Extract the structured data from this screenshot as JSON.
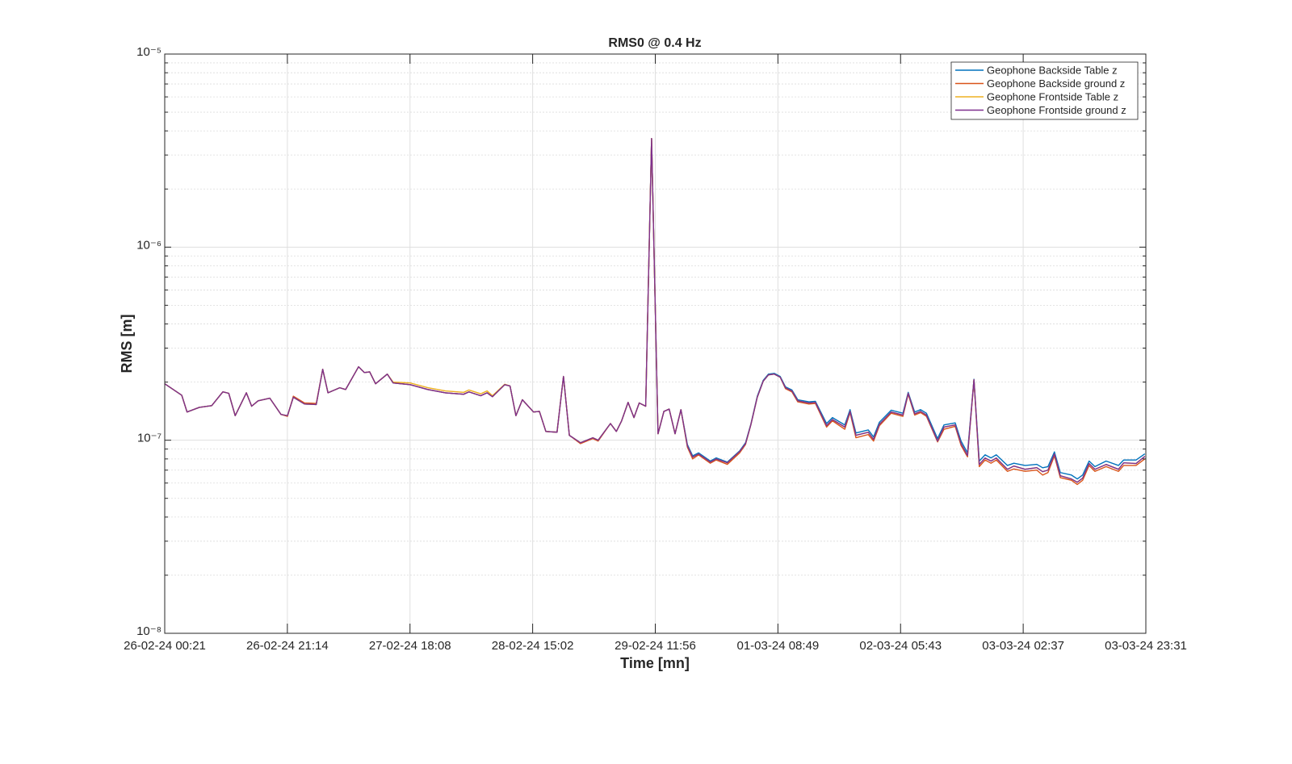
{
  "chart_data": {
    "type": "line",
    "title": "RMS0 @ 0.4 Hz",
    "x_label": "Time [mn]",
    "y_label": "RMS [m]",
    "x": [
      0,
      2.9,
      3.8,
      5.9,
      8.0,
      9.9,
      10.9,
      12.0,
      13.9,
      14.8,
      15.9,
      17.9,
      19.8,
      20.9,
      21.9,
      23.8,
      25.8,
      26.9,
      27.8,
      29.8,
      30.8,
      33.0,
      34.0,
      34.9,
      35.9,
      37.9,
      38.9,
      41.8,
      44.8,
      47.8,
      50.9,
      51.8,
      53.8,
      54.9,
      55.8,
      57.9,
      58.8,
      59.8,
      60.9,
      62.8,
      63.8,
      64.9,
      66.8,
      67.9,
      68.9,
      70.8,
      72.9,
      73.8,
      75.9,
      76.9,
      77.8,
      78.9,
      79.9,
      80.8,
      81.9,
      82.9,
      84.0,
      85.0,
      85.9,
      86.9,
      87.9,
      89.0,
      89.9,
      90.9,
      92.9,
      93.9,
      95.8,
      97.9,
      98.9,
      99.8,
      100.9,
      101.9,
      102.8,
      103.8,
      104.8,
      105.7,
      106.8,
      107.8,
      109.7,
      110.8,
      112.7,
      113.7,
      115.8,
      116.7,
      117.7,
      119.8,
      120.7,
      121.7,
      123.7,
      125.7,
      126.6,
      127.7,
      128.7,
      129.7,
      131.6,
      132.7,
      134.6,
      135.6,
      136.7,
      137.8,
      138.7,
      139.7,
      140.7,
      141.6,
      143.5,
      144.6,
      146.5,
      148.5,
      149.5,
      150.4,
      151.5,
      152.5,
      154.4,
      155.4,
      156.3,
      157.4,
      158.4,
      160.3,
      162.4,
      163.3,
      165.4,
      166.9
    ],
    "series": [
      {
        "name": "Geophone Backside Table z",
        "color": "#0072BD",
        "values": [
          1.96e-07,
          1.71e-07,
          1.4e-07,
          1.48e-07,
          1.51e-07,
          1.78e-07,
          1.75e-07,
          1.34e-07,
          1.76e-07,
          1.5e-07,
          1.6e-07,
          1.65e-07,
          1.36e-07,
          1.34e-07,
          1.67e-07,
          1.54e-07,
          1.53e-07,
          2.33e-07,
          1.76e-07,
          1.87e-07,
          1.83e-07,
          2.4e-07,
          2.24e-07,
          2.26e-07,
          1.96e-07,
          2.2e-07,
          1.98e-07,
          1.94e-07,
          1.83e-07,
          1.76e-07,
          1.73e-07,
          1.78e-07,
          1.7e-07,
          1.76e-07,
          1.68e-07,
          1.94e-07,
          1.91e-07,
          1.34e-07,
          1.62e-07,
          1.4e-07,
          1.41e-07,
          1.11e-07,
          1.1e-07,
          2.14e-07,
          1.06e-07,
          9.7e-08,
          1.03e-07,
          1e-07,
          1.22e-07,
          1.11e-07,
          1.26e-07,
          1.57e-07,
          1.31e-07,
          1.56e-07,
          1.5e-07,
          3.65e-06,
          1.08e-07,
          1.41e-07,
          1.45e-07,
          1.08e-07,
          1.44e-07,
          9.5e-08,
          8.3e-08,
          8.6e-08,
          7.8e-08,
          8.1e-08,
          7.7e-08,
          8.8e-08,
          9.7e-08,
          1.21e-07,
          1.69e-07,
          2.04e-07,
          2.2e-07,
          2.22e-07,
          2.14e-07,
          1.89e-07,
          1.82e-07,
          1.62e-07,
          1.58e-07,
          1.59e-07,
          1.22e-07,
          1.31e-07,
          1.2e-07,
          1.44e-07,
          1.09e-07,
          1.13e-07,
          1.04e-07,
          1.24e-07,
          1.43e-07,
          1.38e-07,
          1.77e-07,
          1.4e-07,
          1.44e-07,
          1.38e-07,
          1.02e-07,
          1.2e-07,
          1.23e-07,
          9.9e-08,
          8.6e-08,
          2.07e-07,
          7.8e-08,
          8.4e-08,
          8.1e-08,
          8.4e-08,
          7.4e-08,
          7.6e-08,
          7.4e-08,
          7.5e-08,
          7.2e-08,
          7.3e-08,
          8.7e-08,
          6.8e-08,
          6.6e-08,
          6.3e-08,
          6.6e-08,
          7.8e-08,
          7.3e-08,
          7.8e-08,
          7.4e-08,
          7.9e-08,
          7.9e-08,
          8.5e-08
        ]
      },
      {
        "name": "Geophone Backside ground z",
        "color": "#D95319",
        "values": [
          1.96e-07,
          1.71e-07,
          1.4e-07,
          1.48e-07,
          1.51e-07,
          1.78e-07,
          1.75e-07,
          1.34e-07,
          1.76e-07,
          1.5e-07,
          1.6e-07,
          1.65e-07,
          1.36e-07,
          1.33e-07,
          1.69e-07,
          1.56e-07,
          1.55e-07,
          2.33e-07,
          1.76e-07,
          1.87e-07,
          1.83e-07,
          2.4e-07,
          2.24e-07,
          2.26e-07,
          1.96e-07,
          2.2e-07,
          1.98e-07,
          1.94e-07,
          1.83e-07,
          1.76e-07,
          1.73e-07,
          1.78e-07,
          1.7e-07,
          1.76e-07,
          1.68e-07,
          1.94e-07,
          1.91e-07,
          1.34e-07,
          1.62e-07,
          1.4e-07,
          1.41e-07,
          1.11e-07,
          1.1e-07,
          2.14e-07,
          1.06e-07,
          9.6e-08,
          1.02e-07,
          9.9e-08,
          1.22e-07,
          1.11e-07,
          1.26e-07,
          1.57e-07,
          1.31e-07,
          1.56e-07,
          1.5e-07,
          3.65e-06,
          1.08e-07,
          1.41e-07,
          1.45e-07,
          1.08e-07,
          1.44e-07,
          9.2e-08,
          8e-08,
          8.4e-08,
          7.6e-08,
          7.9e-08,
          7.5e-08,
          8.6e-08,
          9.5e-08,
          1.2e-07,
          1.67e-07,
          2.02e-07,
          2.18e-07,
          2.2e-07,
          2.12e-07,
          1.85e-07,
          1.78e-07,
          1.58e-07,
          1.54e-07,
          1.55e-07,
          1.17e-07,
          1.26e-07,
          1.14e-07,
          1.39e-07,
          1.03e-07,
          1.07e-07,
          9.9e-08,
          1.19e-07,
          1.38e-07,
          1.33e-07,
          1.73e-07,
          1.35e-07,
          1.39e-07,
          1.33e-07,
          9.8e-08,
          1.14e-07,
          1.18e-07,
          9.4e-08,
          8.2e-08,
          2.05e-07,
          7.3e-08,
          7.9e-08,
          7.6e-08,
          7.9e-08,
          6.9e-08,
          7.1e-08,
          6.9e-08,
          7e-08,
          6.6e-08,
          6.8e-08,
          8.3e-08,
          6.4e-08,
          6.2e-08,
          5.9e-08,
          6.2e-08,
          7.4e-08,
          6.9e-08,
          7.3e-08,
          6.9e-08,
          7.4e-08,
          7.4e-08,
          8e-08
        ]
      },
      {
        "name": "Geophone Frontside Table z",
        "color": "#EDB120",
        "values": [
          1.96e-07,
          1.71e-07,
          1.4e-07,
          1.48e-07,
          1.51e-07,
          1.78e-07,
          1.75e-07,
          1.34e-07,
          1.76e-07,
          1.5e-07,
          1.6e-07,
          1.65e-07,
          1.36e-07,
          1.34e-07,
          1.67e-07,
          1.54e-07,
          1.53e-07,
          2.33e-07,
          1.76e-07,
          1.87e-07,
          1.83e-07,
          2.4e-07,
          2.24e-07,
          2.26e-07,
          1.96e-07,
          2.2e-07,
          2e-07,
          1.98e-07,
          1.87e-07,
          1.8e-07,
          1.77e-07,
          1.82e-07,
          1.74e-07,
          1.8e-07,
          1.7e-07,
          1.95e-07,
          1.91e-07,
          1.34e-07,
          1.62e-07,
          1.4e-07,
          1.41e-07,
          1.11e-07,
          1.1e-07,
          2.14e-07,
          1.06e-07,
          9.7e-08,
          1.03e-07,
          1e-07,
          1.22e-07,
          1.11e-07,
          1.26e-07,
          1.57e-07,
          1.31e-07,
          1.56e-07,
          1.5e-07,
          3.65e-06,
          1.08e-07,
          1.41e-07,
          1.45e-07,
          1.08e-07,
          1.44e-07,
          9.35e-08,
          8.17e-08,
          8.49e-08,
          7.71e-08,
          8e-08,
          7.64e-08,
          8.74e-08,
          9.6e-08,
          1.2e-07,
          1.67e-07,
          2.02e-07,
          2.18e-07,
          2.2e-07,
          2.12e-07,
          1.87e-07,
          1.8e-07,
          1.6e-07,
          1.56e-07,
          1.57e-07,
          1.19e-07,
          1.28e-07,
          1.17e-07,
          1.41e-07,
          1.06e-07,
          1.1e-07,
          1.01e-07,
          1.21e-07,
          1.4e-07,
          1.35e-07,
          1.75e-07,
          1.37e-07,
          1.41e-07,
          1.35e-07,
          9.9e-08,
          1.17e-07,
          1.2e-07,
          9.6e-08,
          8.33e-08,
          2.06e-07,
          7.49e-08,
          8.09e-08,
          7.8e-08,
          8.09e-08,
          7.07e-08,
          7.35e-08,
          7.07e-08,
          7.21e-08,
          6.87e-08,
          7e-08,
          8.49e-08,
          6.55e-08,
          6.3e-08,
          6.06e-08,
          6.36e-08,
          7.57e-08,
          7.07e-08,
          7.49e-08,
          7.07e-08,
          7.64e-08,
          7.57e-08,
          8.25e-08
        ]
      },
      {
        "name": "Geophone Frontside ground z",
        "color": "#7E2F8E",
        "values": [
          1.96e-07,
          1.71e-07,
          1.4e-07,
          1.48e-07,
          1.51e-07,
          1.78e-07,
          1.75e-07,
          1.34e-07,
          1.76e-07,
          1.5e-07,
          1.6e-07,
          1.65e-07,
          1.36e-07,
          1.34e-07,
          1.67e-07,
          1.54e-07,
          1.53e-07,
          2.33e-07,
          1.76e-07,
          1.87e-07,
          1.83e-07,
          2.4e-07,
          2.24e-07,
          2.26e-07,
          1.96e-07,
          2.2e-07,
          1.98e-07,
          1.94e-07,
          1.83e-07,
          1.76e-07,
          1.73e-07,
          1.78e-07,
          1.7e-07,
          1.76e-07,
          1.68e-07,
          1.94e-07,
          1.91e-07,
          1.34e-07,
          1.62e-07,
          1.4e-07,
          1.41e-07,
          1.11e-07,
          1.1e-07,
          2.14e-07,
          1.06e-07,
          9.7e-08,
          1.03e-07,
          1e-07,
          1.22e-07,
          1.11e-07,
          1.26e-07,
          1.57e-07,
          1.31e-07,
          1.56e-07,
          1.5e-07,
          3.65e-06,
          1.08e-07,
          1.41e-07,
          1.45e-07,
          1.08e-07,
          1.44e-07,
          9.35e-08,
          8.17e-08,
          8.49e-08,
          7.71e-08,
          8e-08,
          7.64e-08,
          8.74e-08,
          9.6e-08,
          1.2e-07,
          1.67e-07,
          2.02e-07,
          2.18e-07,
          2.2e-07,
          2.12e-07,
          1.87e-07,
          1.8e-07,
          1.6e-07,
          1.56e-07,
          1.57e-07,
          1.19e-07,
          1.28e-07,
          1.17e-07,
          1.41e-07,
          1.06e-07,
          1.1e-07,
          1.01e-07,
          1.21e-07,
          1.4e-07,
          1.35e-07,
          1.75e-07,
          1.37e-07,
          1.41e-07,
          1.35e-07,
          9.9e-08,
          1.17e-07,
          1.2e-07,
          9.6e-08,
          8.33e-08,
          2.06e-07,
          7.49e-08,
          8.09e-08,
          7.8e-08,
          8.09e-08,
          7.07e-08,
          7.35e-08,
          7.07e-08,
          7.21e-08,
          6.87e-08,
          7e-08,
          8.49e-08,
          6.55e-08,
          6.3e-08,
          6.06e-08,
          6.36e-08,
          7.57e-08,
          7.07e-08,
          7.49e-08,
          7.07e-08,
          7.64e-08,
          7.57e-08,
          8.25e-08
        ]
      }
    ],
    "xlim": [
      0,
      167.067
    ],
    "xticks": [
      {
        "value": 0,
        "label": "26-02-24 00:21"
      },
      {
        "value": 20.883,
        "label": "26-02-24 21:14"
      },
      {
        "value": 41.767,
        "label": "27-02-24 18:08"
      },
      {
        "value": 62.65,
        "label": "28-02-24 15:02"
      },
      {
        "value": 83.533,
        "label": "29-02-24 11:56"
      },
      {
        "value": 104.417,
        "label": "01-03-24 08:49"
      },
      {
        "value": 125.3,
        "label": "02-03-24 05:43"
      },
      {
        "value": 146.183,
        "label": "03-03-24 02:37"
      },
      {
        "value": 167.067,
        "label": "03-03-24 23:31"
      }
    ],
    "ylim": [
      1e-08,
      1e-05
    ],
    "yticks": [
      {
        "value": 1e-08,
        "label": "10⁻⁸"
      },
      {
        "value": 1e-07,
        "label": "10⁻⁷"
      },
      {
        "value": 1e-06,
        "label": "10⁻⁶"
      },
      {
        "value": 1e-05,
        "label": "10⁻⁵"
      }
    ],
    "y_scale": "log",
    "grid": true,
    "legend_position": "northeast"
  }
}
